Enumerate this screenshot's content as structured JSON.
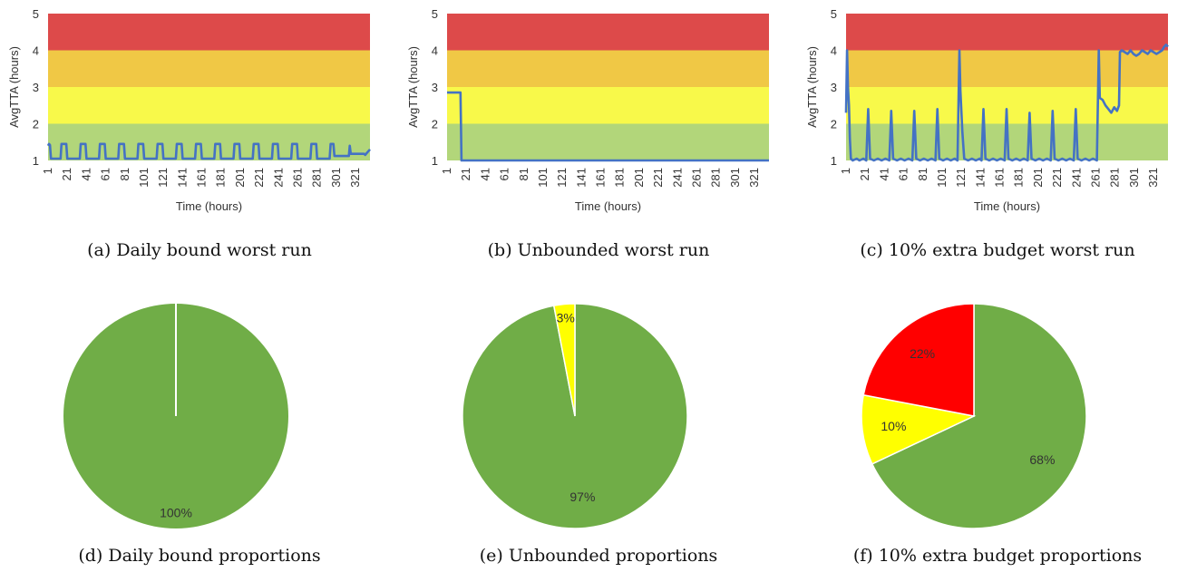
{
  "colors": {
    "line": "#4472c4",
    "band_green": "#b2d67a",
    "band_yellow": "#f8f94a",
    "band_orange": "#f0c845",
    "band_red": "#dd4a4a",
    "pie_green": "#70ad47",
    "pie_yellow": "#ffff00",
    "pie_red": "#ff0000"
  },
  "captions": [
    "(a) Daily bound worst run",
    "(b) Unbounded worst run",
    "(c) 10% extra budget worst run",
    "(d) Daily bound proportions",
    "(e) Unbounded proportions",
    "(f) 10% extra budget proportions"
  ],
  "chart_data": [
    {
      "type": "line",
      "ylabel": "AvgTTA (hours)",
      "xlabel": "Time (hours)",
      "ylim": [
        1,
        5
      ],
      "xlim": [
        1,
        336
      ],
      "yticks": [
        "1",
        "2",
        "3",
        "4",
        "5"
      ],
      "xticks": [
        "1",
        "21",
        "41",
        "61",
        "81",
        "101",
        "121",
        "141",
        "161",
        "181",
        "201",
        "221",
        "241",
        "261",
        "281",
        "301",
        "321"
      ],
      "bands": [
        {
          "from": 1,
          "to": 2,
          "color": "band_green"
        },
        {
          "from": 2,
          "to": 3,
          "color": "band_yellow"
        },
        {
          "from": 3,
          "to": 4,
          "color": "band_orange"
        },
        {
          "from": 4,
          "to": 5,
          "color": "band_red"
        }
      ],
      "series": [
        {
          "points": [
            [
              1,
              1.4
            ],
            [
              2,
              1.45
            ],
            [
              3,
              1.42
            ],
            [
              4,
              1.05
            ],
            [
              14,
              1.05
            ],
            [
              15,
              1.45
            ],
            [
              20,
              1.45
            ],
            [
              21,
              1.05
            ],
            [
              34,
              1.05
            ],
            [
              35,
              1.45
            ],
            [
              40,
              1.45
            ],
            [
              41,
              1.05
            ],
            [
              54,
              1.05
            ],
            [
              55,
              1.45
            ],
            [
              60,
              1.45
            ],
            [
              61,
              1.05
            ],
            [
              74,
              1.05
            ],
            [
              75,
              1.45
            ],
            [
              80,
              1.45
            ],
            [
              81,
              1.05
            ],
            [
              94,
              1.05
            ],
            [
              95,
              1.45
            ],
            [
              100,
              1.45
            ],
            [
              101,
              1.05
            ],
            [
              114,
              1.05
            ],
            [
              115,
              1.45
            ],
            [
              120,
              1.45
            ],
            [
              121,
              1.05
            ],
            [
              134,
              1.05
            ],
            [
              135,
              1.45
            ],
            [
              140,
              1.45
            ],
            [
              141,
              1.05
            ],
            [
              154,
              1.05
            ],
            [
              155,
              1.45
            ],
            [
              160,
              1.45
            ],
            [
              161,
              1.05
            ],
            [
              174,
              1.05
            ],
            [
              175,
              1.45
            ],
            [
              180,
              1.45
            ],
            [
              181,
              1.05
            ],
            [
              194,
              1.05
            ],
            [
              195,
              1.45
            ],
            [
              200,
              1.45
            ],
            [
              201,
              1.05
            ],
            [
              214,
              1.05
            ],
            [
              215,
              1.45
            ],
            [
              220,
              1.45
            ],
            [
              221,
              1.05
            ],
            [
              234,
              1.05
            ],
            [
              235,
              1.45
            ],
            [
              240,
              1.45
            ],
            [
              241,
              1.05
            ],
            [
              254,
              1.05
            ],
            [
              255,
              1.45
            ],
            [
              260,
              1.45
            ],
            [
              261,
              1.05
            ],
            [
              274,
              1.05
            ],
            [
              275,
              1.45
            ],
            [
              280,
              1.45
            ],
            [
              281,
              1.05
            ],
            [
              294,
              1.05
            ],
            [
              295,
              1.45
            ],
            [
              298,
              1.45
            ],
            [
              299,
              1.12
            ],
            [
              314,
              1.12
            ],
            [
              315,
              1.4
            ],
            [
              316,
              1.18
            ],
            [
              330,
              1.18
            ],
            [
              331,
              1.15
            ],
            [
              336,
              1.3
            ]
          ]
        }
      ]
    },
    {
      "type": "line",
      "ylabel": "AvgTTA (hours)",
      "xlabel": "Time (hours)",
      "ylim": [
        1,
        5
      ],
      "xlim": [
        1,
        336
      ],
      "yticks": [
        "1",
        "2",
        "3",
        "4",
        "5"
      ],
      "xticks": [
        "1",
        "21",
        "41",
        "61",
        "81",
        "101",
        "121",
        "141",
        "161",
        "181",
        "201",
        "221",
        "241",
        "261",
        "281",
        "301",
        "321"
      ],
      "bands": [
        {
          "from": 1,
          "to": 2,
          "color": "band_green"
        },
        {
          "from": 2,
          "to": 3,
          "color": "band_yellow"
        },
        {
          "from": 3,
          "to": 4,
          "color": "band_orange"
        },
        {
          "from": 4,
          "to": 5,
          "color": "band_red"
        }
      ],
      "series": [
        {
          "points": [
            [
              1,
              2.85
            ],
            [
              15,
              2.85
            ],
            [
              16,
              1.0
            ],
            [
              336,
              1.0
            ]
          ]
        }
      ]
    },
    {
      "type": "line",
      "ylabel": "AvgTTA (hours)",
      "xlabel": "Time (hours)",
      "ylim": [
        1,
        5
      ],
      "xlim": [
        1,
        336
      ],
      "yticks": [
        "1",
        "2",
        "3",
        "4",
        "5"
      ],
      "xticks": [
        "1",
        "21",
        "41",
        "61",
        "81",
        "101",
        "121",
        "141",
        "161",
        "181",
        "201",
        "221",
        "241",
        "261",
        "281",
        "301",
        "321"
      ],
      "bands": [
        {
          "from": 1,
          "to": 2,
          "color": "band_green"
        },
        {
          "from": 2,
          "to": 3,
          "color": "band_yellow"
        },
        {
          "from": 3,
          "to": 4,
          "color": "band_orange"
        },
        {
          "from": 4,
          "to": 5,
          "color": "band_red"
        }
      ],
      "series": [
        {
          "points": [
            [
              1,
              2.3
            ],
            [
              2,
              4.0
            ],
            [
              3,
              3.0
            ],
            [
              4,
              2.5
            ],
            [
              5,
              1.6
            ],
            [
              6,
              1.05
            ],
            [
              8,
              1.0
            ],
            [
              12,
              1.05
            ],
            [
              15,
              1.0
            ],
            [
              19,
              1.05
            ],
            [
              22,
              1.0
            ],
            [
              24,
              2.4
            ],
            [
              26,
              1.05
            ],
            [
              30,
              1.0
            ],
            [
              34,
              1.05
            ],
            [
              38,
              1.0
            ],
            [
              42,
              1.05
            ],
            [
              46,
              1.0
            ],
            [
              48,
              2.35
            ],
            [
              50,
              1.05
            ],
            [
              54,
              1.0
            ],
            [
              58,
              1.05
            ],
            [
              62,
              1.0
            ],
            [
              66,
              1.05
            ],
            [
              70,
              1.0
            ],
            [
              72,
              2.35
            ],
            [
              74,
              1.05
            ],
            [
              78,
              1.0
            ],
            [
              82,
              1.05
            ],
            [
              86,
              1.0
            ],
            [
              90,
              1.05
            ],
            [
              94,
              1.0
            ],
            [
              96,
              2.4
            ],
            [
              98,
              1.05
            ],
            [
              102,
              1.0
            ],
            [
              106,
              1.05
            ],
            [
              110,
              1.0
            ],
            [
              114,
              1.05
            ],
            [
              117,
              1.0
            ],
            [
              119,
              4.0
            ],
            [
              120,
              2.9
            ],
            [
              122,
              1.8
            ],
            [
              124,
              1.05
            ],
            [
              128,
              1.0
            ],
            [
              132,
              1.05
            ],
            [
              136,
              1.0
            ],
            [
              140,
              1.05
            ],
            [
              142,
              1.0
            ],
            [
              144,
              2.4
            ],
            [
              146,
              1.05
            ],
            [
              150,
              1.0
            ],
            [
              154,
              1.05
            ],
            [
              158,
              1.0
            ],
            [
              162,
              1.05
            ],
            [
              166,
              1.0
            ],
            [
              168,
              2.4
            ],
            [
              170,
              1.05
            ],
            [
              174,
              1.0
            ],
            [
              178,
              1.05
            ],
            [
              182,
              1.0
            ],
            [
              186,
              1.05
            ],
            [
              190,
              1.0
            ],
            [
              192,
              2.3
            ],
            [
              194,
              1.05
            ],
            [
              198,
              1.0
            ],
            [
              202,
              1.05
            ],
            [
              206,
              1.0
            ],
            [
              210,
              1.05
            ],
            [
              214,
              1.0
            ],
            [
              216,
              2.35
            ],
            [
              218,
              1.05
            ],
            [
              222,
              1.0
            ],
            [
              226,
              1.05
            ],
            [
              230,
              1.0
            ],
            [
              234,
              1.05
            ],
            [
              238,
              1.0
            ],
            [
              240,
              2.4
            ],
            [
              242,
              1.05
            ],
            [
              246,
              1.0
            ],
            [
              250,
              1.05
            ],
            [
              254,
              1.0
            ],
            [
              258,
              1.05
            ],
            [
              262,
              1.0
            ],
            [
              264,
              4.0
            ],
            [
              265,
              2.7
            ],
            [
              268,
              2.65
            ],
            [
              271,
              2.5
            ],
            [
              274,
              2.4
            ],
            [
              277,
              2.3
            ],
            [
              280,
              2.45
            ],
            [
              283,
              2.35
            ],
            [
              285,
              2.5
            ],
            [
              286,
              3.95
            ],
            [
              288,
              4.0
            ],
            [
              291,
              3.95
            ],
            [
              294,
              3.9
            ],
            [
              297,
              4.0
            ],
            [
              300,
              3.9
            ],
            [
              303,
              3.85
            ],
            [
              306,
              3.9
            ],
            [
              309,
              4.0
            ],
            [
              312,
              3.95
            ],
            [
              315,
              3.9
            ],
            [
              318,
              4.0
            ],
            [
              321,
              3.95
            ],
            [
              324,
              3.9
            ],
            [
              327,
              3.95
            ],
            [
              330,
              4.0
            ],
            [
              332,
              4.1
            ],
            [
              334,
              4.15
            ],
            [
              336,
              4.1
            ]
          ]
        }
      ]
    },
    {
      "type": "pie",
      "slices": [
        {
          "value": 100,
          "label": "100%",
          "color": "pie_green"
        }
      ]
    },
    {
      "type": "pie",
      "slices": [
        {
          "value": 97,
          "label": "97%",
          "color": "pie_green"
        },
        {
          "value": 3,
          "label": "3%",
          "color": "pie_yellow"
        }
      ]
    },
    {
      "type": "pie",
      "slices": [
        {
          "value": 68,
          "label": "68%",
          "color": "pie_green"
        },
        {
          "value": 10,
          "label": "10%",
          "color": "pie_yellow"
        },
        {
          "value": 22,
          "label": "22%",
          "color": "pie_red"
        }
      ]
    }
  ]
}
